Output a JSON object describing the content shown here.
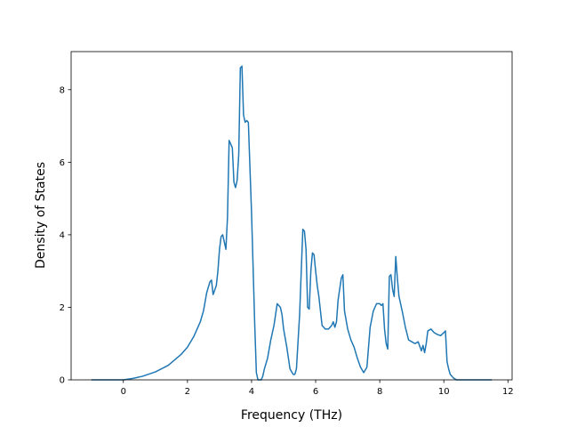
{
  "chart_data": {
    "type": "line",
    "title": "",
    "xlabel": "Frequency (THz)",
    "ylabel": "Density of States",
    "xlim": [
      -1.63,
      12.13
    ],
    "ylim": [
      0,
      9.05
    ],
    "x_ticks": [
      0,
      2,
      4,
      6,
      8,
      10,
      12
    ],
    "y_ticks": [
      0,
      2,
      4,
      6,
      8
    ],
    "x_tick_labels": [
      "0",
      "2",
      "4",
      "6",
      "8",
      "10",
      "12"
    ],
    "y_tick_labels": [
      "0",
      "2",
      "4",
      "6",
      "8"
    ],
    "grid": false,
    "legend": "none",
    "line_color": "#1f77b4",
    "series": [
      {
        "x": [
          -1.0,
          -0.5,
          0.0,
          0.3,
          0.6,
          1.0,
          1.4,
          1.8,
          2.0,
          2.2,
          2.4,
          2.5,
          2.6,
          2.7,
          2.75,
          2.8,
          2.9,
          2.95,
          3.0,
          3.05,
          3.1,
          3.2,
          3.25,
          3.3,
          3.35,
          3.4,
          3.45,
          3.5,
          3.55,
          3.6,
          3.65,
          3.7,
          3.75,
          3.8,
          3.85,
          3.9,
          4.0,
          4.1,
          4.15,
          4.2,
          4.3,
          4.35,
          4.4,
          4.5,
          4.6,
          4.7,
          4.8,
          4.9,
          4.95,
          5.0,
          5.1,
          5.2,
          5.3,
          5.35,
          5.4,
          5.5,
          5.6,
          5.65,
          5.7,
          5.75,
          5.8,
          5.85,
          5.9,
          5.95,
          6.0,
          6.05,
          6.1,
          6.2,
          6.3,
          6.4,
          6.5,
          6.55,
          6.6,
          6.65,
          6.7,
          6.8,
          6.85,
          6.9,
          7.0,
          7.1,
          7.2,
          7.3,
          7.4,
          7.5,
          7.6,
          7.7,
          7.8,
          7.9,
          8.0,
          8.05,
          8.1,
          8.15,
          8.2,
          8.25,
          8.3,
          8.35,
          8.4,
          8.45,
          8.5,
          8.55,
          8.6,
          8.65,
          8.7,
          8.8,
          8.9,
          9.0,
          9.1,
          9.2,
          9.3,
          9.35,
          9.4,
          9.45,
          9.5,
          9.6,
          9.65,
          9.7,
          9.8,
          9.9,
          10.0,
          10.05,
          10.1,
          10.15,
          10.2,
          10.3,
          10.4,
          10.5,
          11.0,
          11.5
        ],
        "y": [
          0.0,
          0.0,
          0.0,
          0.04,
          0.1,
          0.22,
          0.4,
          0.7,
          0.9,
          1.2,
          1.6,
          1.9,
          2.4,
          2.7,
          2.75,
          2.35,
          2.6,
          3.0,
          3.6,
          3.95,
          4.0,
          3.6,
          4.5,
          6.6,
          6.5,
          6.4,
          5.45,
          5.3,
          5.5,
          6.2,
          8.6,
          8.65,
          7.3,
          7.1,
          7.15,
          7.1,
          4.6,
          1.5,
          0.2,
          0.0,
          0.0,
          0.1,
          0.3,
          0.6,
          1.1,
          1.5,
          2.1,
          2.0,
          1.8,
          1.4,
          0.9,
          0.3,
          0.15,
          0.15,
          0.3,
          1.8,
          4.15,
          4.1,
          3.6,
          2.0,
          1.95,
          3.0,
          3.5,
          3.45,
          3.0,
          2.6,
          2.3,
          1.5,
          1.4,
          1.4,
          1.5,
          1.6,
          1.45,
          1.6,
          2.2,
          2.8,
          2.9,
          1.9,
          1.4,
          1.1,
          0.9,
          0.6,
          0.35,
          0.2,
          0.35,
          1.45,
          1.9,
          2.1,
          2.1,
          2.05,
          2.1,
          1.4,
          1.0,
          0.85,
          2.85,
          2.9,
          2.5,
          2.3,
          3.4,
          2.8,
          2.3,
          2.1,
          1.9,
          1.45,
          1.1,
          1.05,
          1.0,
          1.05,
          0.8,
          0.95,
          0.75,
          1.0,
          1.35,
          1.4,
          1.35,
          1.3,
          1.25,
          1.22,
          1.3,
          1.35,
          0.5,
          0.3,
          0.15,
          0.05,
          0.0,
          0.0,
          0.0,
          0.0
        ]
      }
    ]
  }
}
